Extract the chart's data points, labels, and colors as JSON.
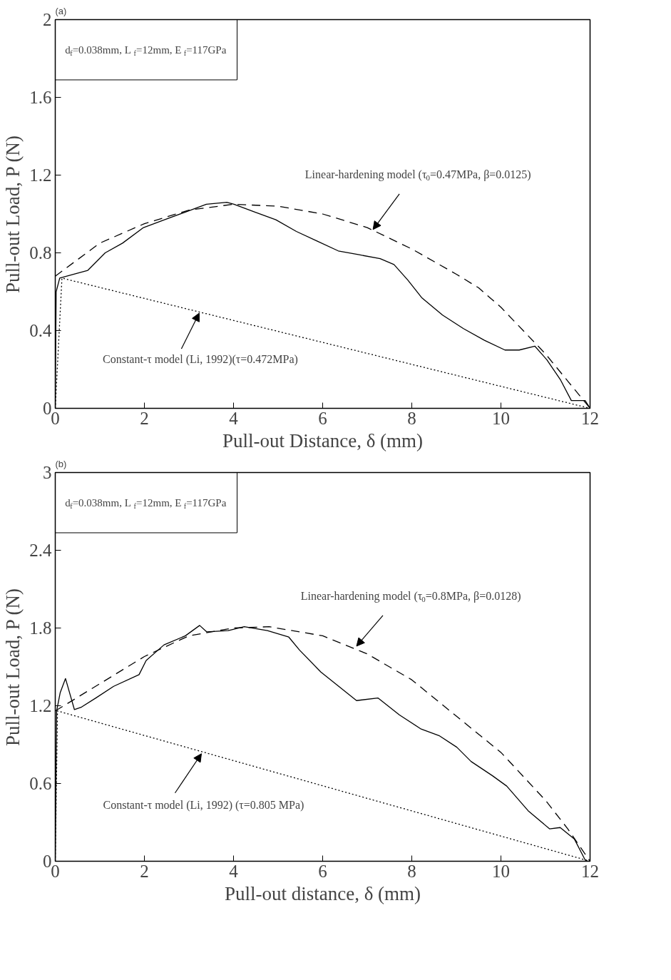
{
  "chart_data": [
    {
      "type": "line",
      "title": "(a)",
      "xlabel": "Pull-out Distance, δ (mm)",
      "ylabel": "Pull-out Load, P (N)",
      "xlim": [
        0,
        12
      ],
      "ylim": [
        0,
        2
      ],
      "xticks": [
        0,
        2,
        4,
        6,
        8,
        10,
        12
      ],
      "yticks": [
        0,
        0.4,
        0.8,
        1.2,
        1.6,
        2
      ],
      "annotations": [
        "d$_{f}$=0.038mm, L$_{f}$=12mm, E$_{f}$=117GPa",
        {
          "text": "Linear-hardening model (τ$_{0}$=0.47MPa, β=0.0125)",
          "x": 7.13,
          "y": 0.92
        },
        {
          "text": "Constant-τ  model (Li, 1992)(τ=0.472MPa)",
          "x": 3.23,
          "y": 0.49
        }
      ],
      "series": [
        {
          "color": "#000000",
          "line_style": "solid",
          "x": [
            0,
            0.02,
            0.1,
            0.42,
            0.73,
            1.12,
            1.51,
            1.98,
            2.45,
            2.92,
            3.39,
            3.85,
            4.01,
            4.48,
            4.95,
            5.41,
            5.88,
            6.35,
            6.82,
            7.29,
            7.6,
            7.91,
            8.22,
            8.69,
            9.16,
            9.63,
            10.09,
            10.41,
            10.76,
            11.03,
            11.34,
            11.58,
            11.89,
            12
          ],
          "values": [
            0,
            0.6,
            0.67,
            0.69,
            0.71,
            0.8,
            0.85,
            0.93,
            0.97,
            1.01,
            1.05,
            1.06,
            1.05,
            1.01,
            0.97,
            0.91,
            0.86,
            0.81,
            0.79,
            0.77,
            0.74,
            0.66,
            0.57,
            0.48,
            0.41,
            0.35,
            0.3,
            0.3,
            0.32,
            0.25,
            0.145,
            0.04,
            0.04,
            0
          ]
        },
        {
          "color": "#000000",
          "line_style": "dashed",
          "x": [
            0,
            1,
            2,
            3,
            4,
            5,
            6,
            7,
            8,
            9,
            9.5,
            10,
            10.5,
            11,
            11.5,
            12
          ],
          "values": [
            0.68,
            0.85,
            0.95,
            1.02,
            1.05,
            1.04,
            1.0,
            0.93,
            0.82,
            0.69,
            0.62,
            0.52,
            0.4,
            0.28,
            0.14,
            0
          ]
        },
        {
          "color": "#000000",
          "line_style": "dotted",
          "x": [
            0,
            0.15,
            12
          ],
          "values": [
            0,
            0.67,
            0
          ]
        }
      ]
    },
    {
      "type": "line",
      "title": "(b)",
      "xlabel": "Pull-out distance, δ (mm)",
      "ylabel": "Pull-out Load, P (N)",
      "xlim": [
        0,
        12
      ],
      "ylim": [
        0,
        3
      ],
      "xticks": [
        0,
        2,
        4,
        6,
        8,
        10,
        12
      ],
      "yticks": [
        0,
        0.6,
        1.2,
        1.8,
        2.4,
        3
      ],
      "annotations": [
        "d$_{f}$=0.038mm, L$_{f}$=12mm, E$_{f}$=117GPa",
        {
          "text": "Linear-hardening model (τ$_{0}$=0.8MPa, β=0.0128)",
          "x": 6.76,
          "y": 1.66
        },
        {
          "text": "Constant-τ  model (Li, 1992) (τ=0.805 MPa)",
          "x": 3.28,
          "y": 0.83
        }
      ],
      "series": [
        {
          "color": "#000000",
          "line_style": "solid",
          "x": [
            0,
            0.03,
            0.11,
            0.23,
            0.43,
            0.59,
            0.91,
            1.31,
            1.88,
            2.04,
            2.44,
            2.92,
            3.24,
            3.4,
            3.88,
            4.24,
            4.76,
            5.24,
            5.48,
            5.96,
            6.36,
            6.76,
            7.24,
            7.72,
            8.21,
            8.61,
            9.01,
            9.33,
            9.81,
            10.13,
            10.61,
            11.09,
            11.33,
            11.65,
            11.89,
            11.95
          ],
          "values": [
            0,
            1.16,
            1.3,
            1.41,
            1.17,
            1.19,
            1.26,
            1.35,
            1.44,
            1.55,
            1.67,
            1.74,
            1.82,
            1.77,
            1.78,
            1.81,
            1.78,
            1.73,
            1.63,
            1.46,
            1.35,
            1.24,
            1.26,
            1.13,
            1.02,
            0.97,
            0.88,
            0.77,
            0.66,
            0.58,
            0.39,
            0.25,
            0.26,
            0.17,
            0.01,
            0
          ]
        },
        {
          "color": "#000000",
          "line_style": "dashed",
          "x": [
            0,
            1,
            2,
            3,
            4,
            4.8,
            6,
            7,
            8,
            9,
            10,
            11,
            11.5,
            12
          ],
          "values": [
            1.16,
            1.37,
            1.58,
            1.74,
            1.8,
            1.81,
            1.74,
            1.6,
            1.4,
            1.12,
            0.84,
            0.47,
            0.25,
            0
          ]
        },
        {
          "color": "#000000",
          "line_style": "dotted",
          "x": [
            0,
            0.05,
            12
          ],
          "values": [
            0,
            1.16,
            0
          ]
        }
      ]
    }
  ]
}
